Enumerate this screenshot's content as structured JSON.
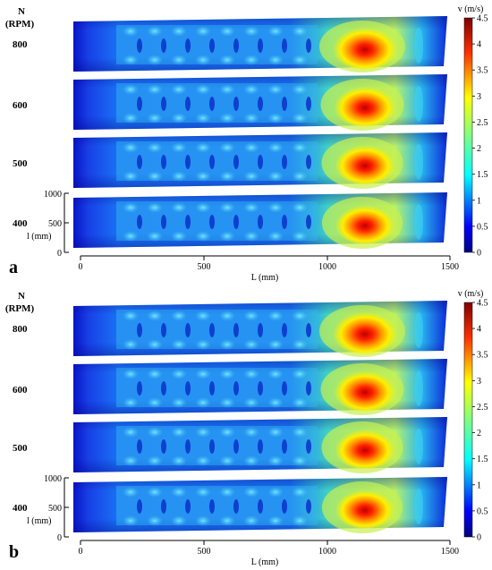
{
  "figure": {
    "panels": [
      {
        "label": "a",
        "header": [
          "N",
          "(RPM)"
        ],
        "rpm_rows": [
          "800",
          "600",
          "500",
          "400"
        ],
        "x_axis_title": "L (mm)",
        "x_ticks": [
          "0",
          "500",
          "1000",
          "1500"
        ],
        "y_axis_title": "l (mm)",
        "y_ticks": [
          "1000",
          "500",
          "0"
        ],
        "colorbar_title": "v (m/s)",
        "colorbar_ticks": [
          "4.5",
          "4",
          "3.5",
          "3",
          "2.5",
          "2",
          "1.5",
          "1",
          "0.5",
          "0"
        ]
      },
      {
        "label": "b",
        "header": [
          "N",
          "(RPM)"
        ],
        "rpm_rows": [
          "800",
          "600",
          "500",
          "400"
        ],
        "x_axis_title": "L (mm)",
        "x_ticks": [
          "0",
          "500",
          "1000",
          "1500"
        ],
        "y_axis_title": "l (mm)",
        "y_ticks": [
          "1000",
          "500",
          "0"
        ],
        "colorbar_title": "v (m/s)",
        "colorbar_ticks": [
          "4.5",
          "4",
          "3.5",
          "3",
          "2.5",
          "2",
          "1.5",
          "1",
          "0.5",
          "0"
        ]
      }
    ],
    "colormap": [
      "#00007f",
      "#0000ff",
      "#007fff",
      "#00ffff",
      "#7fff7f",
      "#ffff00",
      "#ff7f00",
      "#ff0000",
      "#7f0000"
    ],
    "x_range_mm": [
      0,
      1500
    ],
    "y_range_mm": [
      0,
      1000
    ],
    "v_range": [
      0,
      4.5
    ]
  }
}
